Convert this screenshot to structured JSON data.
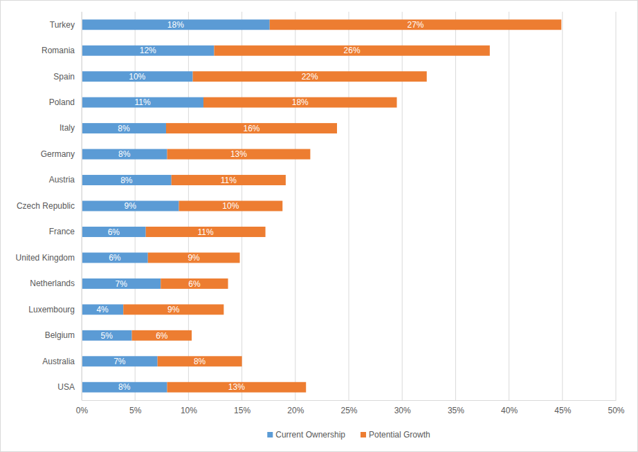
{
  "chart_data": {
    "type": "bar",
    "orientation": "horizontal",
    "stacked": true,
    "data_labels": true,
    "grid": true,
    "legend": "bottom",
    "categories": [
      "Turkey",
      "Romania",
      "Spain",
      "Poland",
      "Italy",
      "Germany",
      "Austria",
      "Czech Republic",
      "France",
      "United Kingdom",
      "Netherlands",
      "Luxembourg",
      "Belgium",
      "Australia",
      "USA"
    ],
    "series": [
      {
        "name": "Current Ownership",
        "color": "#5b9bd5",
        "values": [
          17.6,
          12.4,
          10.4,
          11.4,
          7.9,
          8.0,
          8.4,
          9.1,
          6.0,
          6.2,
          7.4,
          3.9,
          4.7,
          7.1,
          8.0
        ],
        "value_labels": [
          "18%",
          "12%",
          "10%",
          "11%",
          "8%",
          "8%",
          "8%",
          "9%",
          "6%",
          "6%",
          "7%",
          "4%",
          "5%",
          "7%",
          "8%"
        ]
      },
      {
        "name": "Potential Growth",
        "color": "#ed7d31",
        "values": [
          27.3,
          25.8,
          21.9,
          18.1,
          16.0,
          13.4,
          10.7,
          9.7,
          11.2,
          8.6,
          6.3,
          9.4,
          5.6,
          7.9,
          13.0
        ],
        "value_labels": [
          "27%",
          "26%",
          "22%",
          "18%",
          "16%",
          "13%",
          "11%",
          "10%",
          "11%",
          "9%",
          "6%",
          "9%",
          "6%",
          "8%",
          "13%"
        ]
      }
    ],
    "xlim": [
      0,
      50
    ],
    "xticks": [
      {
        "value": 0,
        "label": "0%"
      },
      {
        "value": 5,
        "label": "5%"
      },
      {
        "value": 10,
        "label": "10%"
      },
      {
        "value": 15,
        "label": "15%"
      },
      {
        "value": 20,
        "label": "20%"
      },
      {
        "value": 25,
        "label": "25%"
      },
      {
        "value": 30,
        "label": "30%"
      },
      {
        "value": 35,
        "label": "35%"
      },
      {
        "value": 40,
        "label": "40%"
      },
      {
        "value": 45,
        "label": "45%"
      },
      {
        "value": 50,
        "label": "50%"
      }
    ]
  }
}
